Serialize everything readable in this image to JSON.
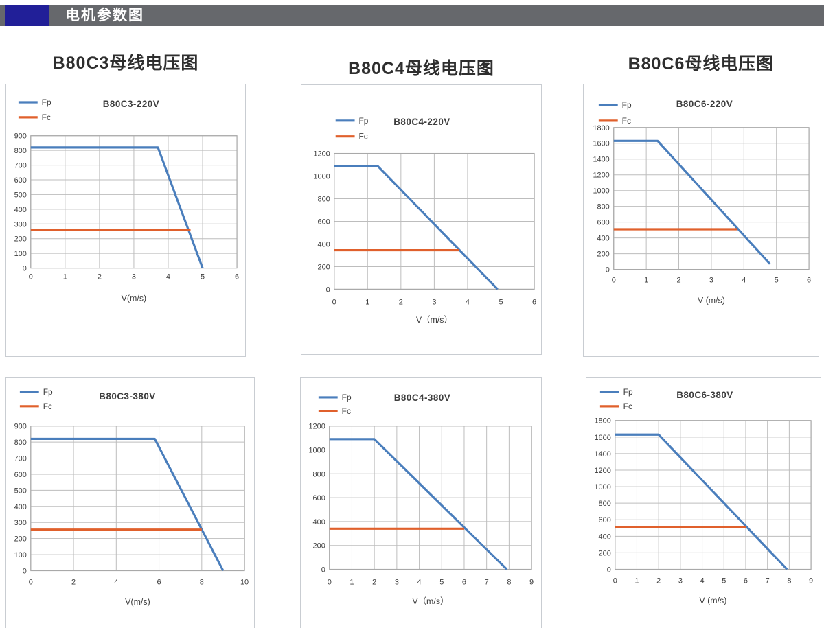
{
  "header": {
    "title": "电机参数图"
  },
  "group_titles": [
    "B80C3母线电压图",
    "B80C4母线电压图",
    "B80C6母线电压图"
  ],
  "colors": {
    "header_bar": "#66686c",
    "header_accent": "#211f98",
    "header_text": "#ffffff",
    "fp_line": "#4a7ebc",
    "fc_line": "#e0602c",
    "grid": "#bdbdbd",
    "frame": "#a9a9a9",
    "text": "#3d3d3d",
    "card_border": "#c9cdd2"
  },
  "chart_data": [
    {
      "type": "line",
      "title": "B80C3-220V",
      "xlabel": "V(m/s)",
      "xlim": [
        0,
        6
      ],
      "xstep": 1,
      "ylim": [
        0,
        900
      ],
      "ystep": 100,
      "grid": true,
      "legend_position": "top-left",
      "series": [
        {
          "name": "Fp",
          "color": "#4a7ebc",
          "points": [
            [
              0,
              820
            ],
            [
              3.7,
              820
            ],
            [
              5.0,
              0
            ]
          ]
        },
        {
          "name": "Fc",
          "color": "#e0602c",
          "points": [
            [
              0,
              258
            ],
            [
              4.65,
              258
            ]
          ]
        }
      ]
    },
    {
      "type": "line",
      "title": "B80C4-220V",
      "xlabel": "V（m/s）",
      "xlim": [
        0,
        6
      ],
      "xstep": 1,
      "ylim": [
        0,
        1200
      ],
      "ystep": 200,
      "grid": true,
      "legend_position": "top-left",
      "series": [
        {
          "name": "Fp",
          "color": "#4a7ebc",
          "points": [
            [
              0,
              1090
            ],
            [
              1.3,
              1090
            ],
            [
              4.9,
              0
            ]
          ]
        },
        {
          "name": "Fc",
          "color": "#e0602c",
          "points": [
            [
              0,
              345
            ],
            [
              3.75,
              345
            ]
          ]
        }
      ]
    },
    {
      "type": "line",
      "title": "B80C6-220V",
      "xlabel": "V (m/s)",
      "xlim": [
        0,
        6
      ],
      "xstep": 1,
      "ylim": [
        0,
        1800
      ],
      "ystep": 200,
      "grid": true,
      "legend_position": "top-left",
      "series": [
        {
          "name": "Fp",
          "color": "#4a7ebc",
          "points": [
            [
              0,
              1630
            ],
            [
              1.35,
              1630
            ],
            [
              4.8,
              70
            ]
          ]
        },
        {
          "name": "Fc",
          "color": "#e0602c",
          "points": [
            [
              0,
              510
            ],
            [
              3.8,
              510
            ]
          ]
        }
      ]
    },
    {
      "type": "line",
      "title": "B80C3-380V",
      "xlabel": "V(m/s)",
      "xlim": [
        0,
        10
      ],
      "xstep": 2,
      "ylim": [
        0,
        900
      ],
      "ystep": 100,
      "grid": true,
      "legend_position": "top-left",
      "series": [
        {
          "name": "Fp",
          "color": "#4a7ebc",
          "points": [
            [
              0,
              820
            ],
            [
              5.8,
              820
            ],
            [
              9.0,
              0
            ]
          ]
        },
        {
          "name": "Fc",
          "color": "#e0602c",
          "points": [
            [
              0,
              255
            ],
            [
              8.0,
              255
            ]
          ]
        }
      ]
    },
    {
      "type": "line",
      "title": "B80C4-380V",
      "xlabel": "V（m/s）",
      "xlim": [
        0,
        9
      ],
      "xstep": 1,
      "ylim": [
        0,
        1200
      ],
      "ystep": 200,
      "grid": true,
      "legend_position": "top-left",
      "series": [
        {
          "name": "Fp",
          "color": "#4a7ebc",
          "points": [
            [
              0,
              1090
            ],
            [
              2.0,
              1090
            ],
            [
              7.9,
              0
            ]
          ]
        },
        {
          "name": "Fc",
          "color": "#e0602c",
          "points": [
            [
              0,
              340
            ],
            [
              6.0,
              340
            ]
          ]
        }
      ]
    },
    {
      "type": "line",
      "title": "B80C6-380V",
      "xlabel": "V (m/s)",
      "xlim": [
        0,
        9
      ],
      "xstep": 1,
      "ylim": [
        0,
        1800
      ],
      "ystep": 200,
      "grid": true,
      "legend_position": "top-left",
      "series": [
        {
          "name": "Fp",
          "color": "#4a7ebc",
          "points": [
            [
              0,
              1630
            ],
            [
              2.0,
              1630
            ],
            [
              7.9,
              0
            ]
          ]
        },
        {
          "name": "Fc",
          "color": "#e0602c",
          "points": [
            [
              0,
              510
            ],
            [
              6.0,
              510
            ]
          ]
        }
      ]
    }
  ]
}
